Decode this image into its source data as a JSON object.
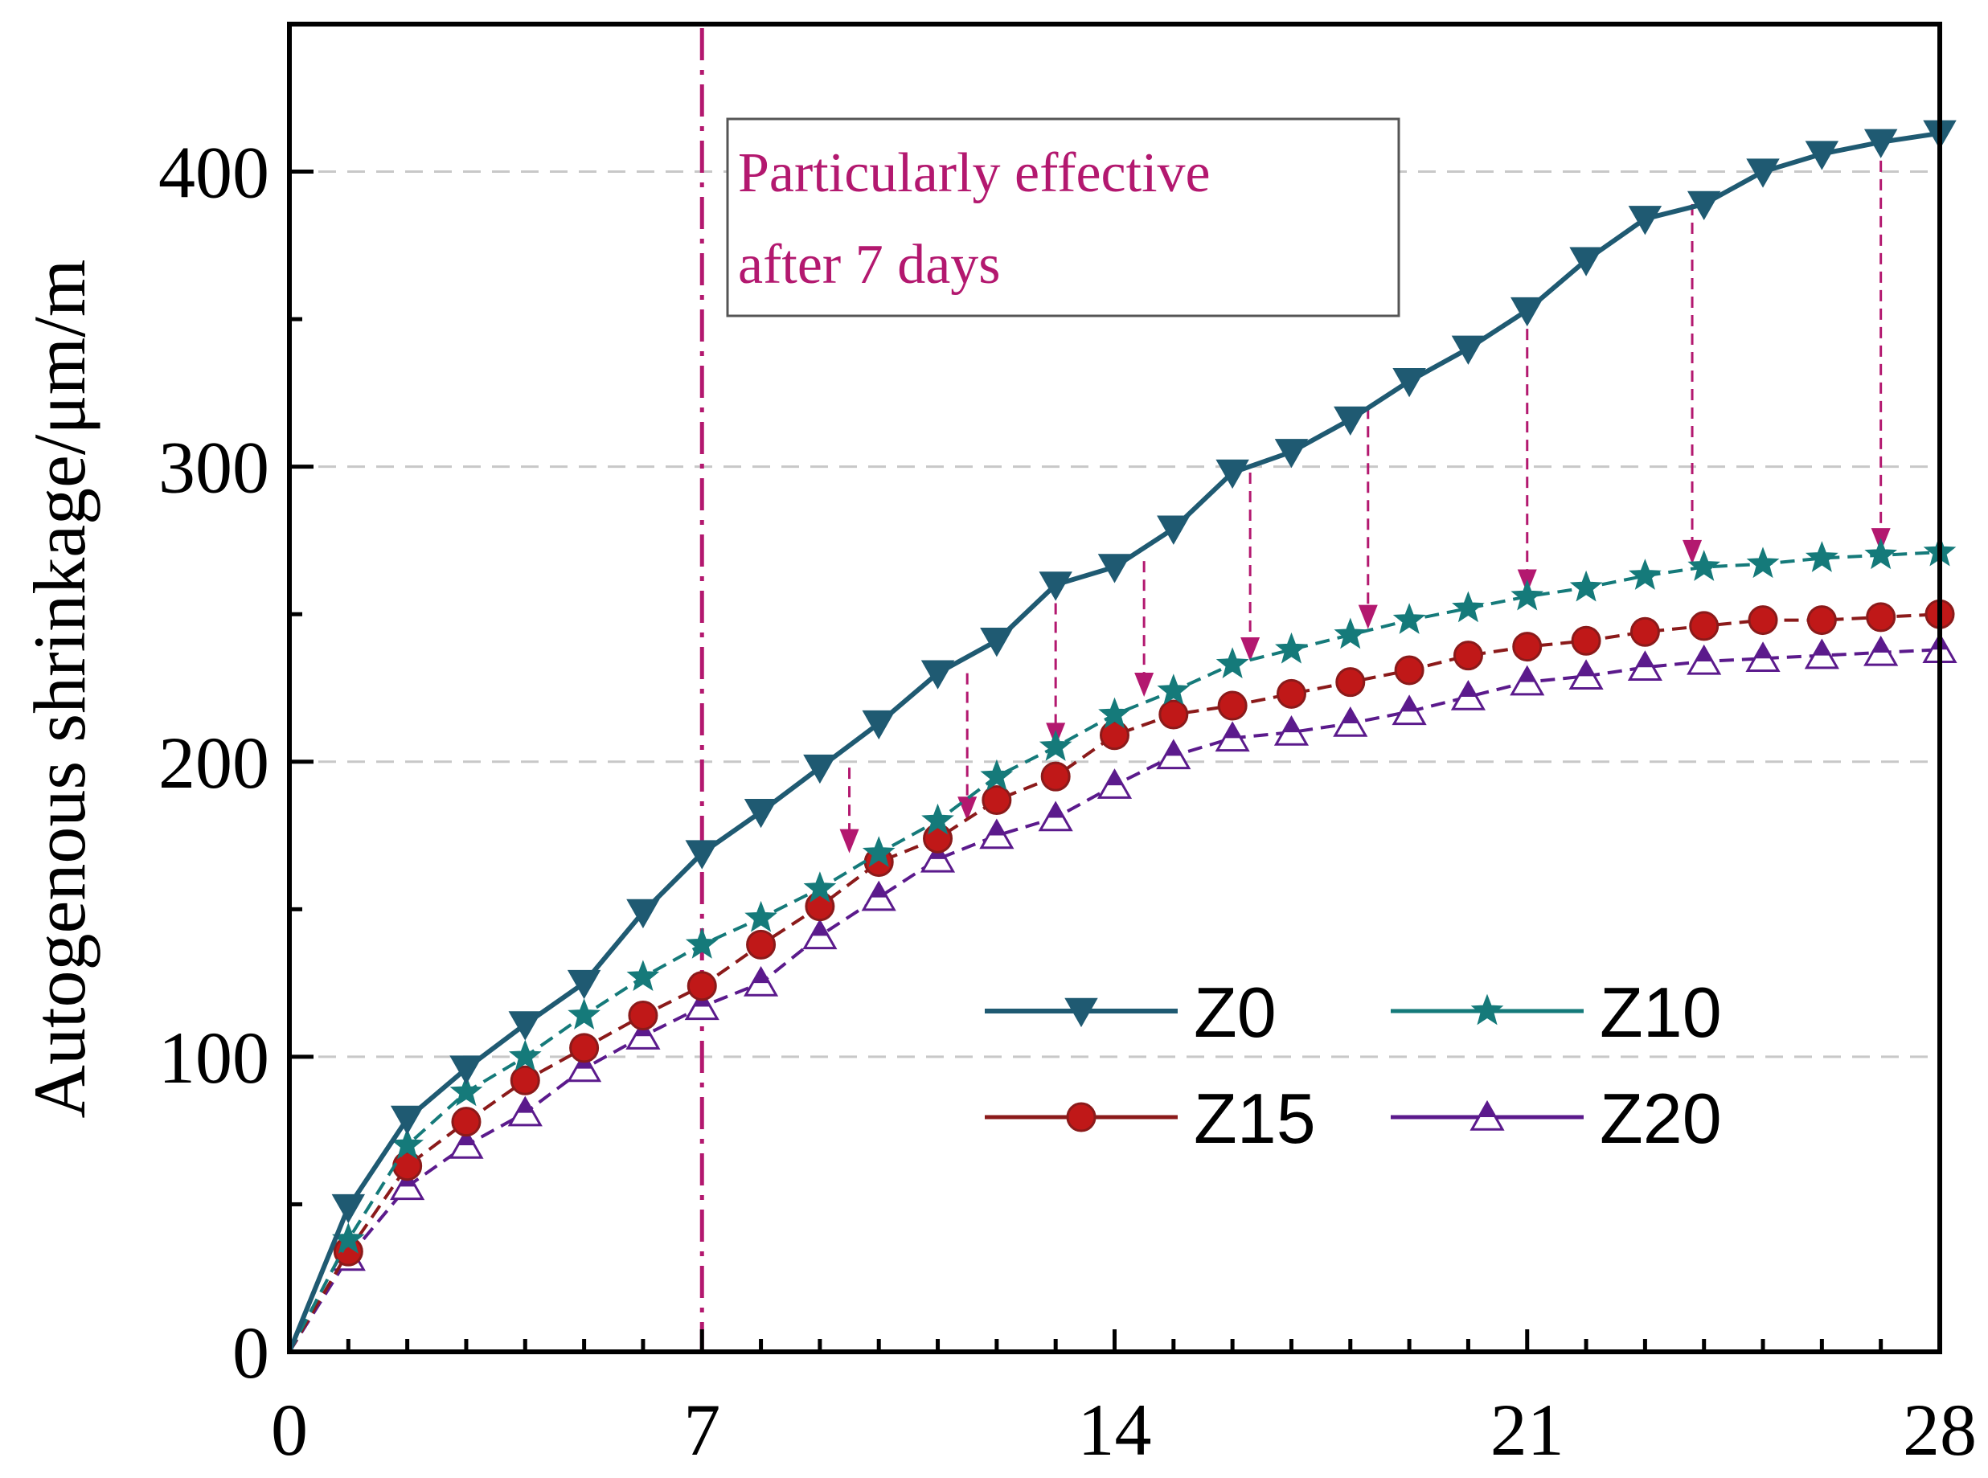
{
  "chart_data": {
    "type": "line",
    "title": "",
    "xlabel": "",
    "ylabel": "Autogenous shrinkage/μm/m",
    "xlim": [
      0,
      28
    ],
    "ylim": [
      0,
      450
    ],
    "x_ticks": [
      "0",
      "7",
      "14",
      "21",
      "28"
    ],
    "y_ticks": [
      "0",
      "100",
      "200",
      "300",
      "400"
    ],
    "grid": "horizontal dashed",
    "legend_position": "bottom-right",
    "x": [
      0,
      1,
      2,
      3,
      4,
      5,
      6,
      7,
      8,
      9,
      10,
      11,
      12,
      13,
      14,
      15,
      16,
      17,
      18,
      19,
      20,
      21,
      22,
      23,
      24,
      25,
      26,
      27,
      28
    ],
    "series": [
      {
        "name": "Z0",
        "color": "#1f5a72",
        "line": "solid",
        "marker": "triangle-down-filled",
        "values": [
          0,
          49,
          79,
          96,
          111,
          125,
          149,
          169,
          183,
          198,
          213,
          230,
          241,
          260,
          266,
          279,
          298,
          305,
          316,
          329,
          340,
          353,
          370,
          384,
          389,
          400,
          406,
          410,
          413
        ]
      },
      {
        "name": "Z10",
        "color": "#157a7a",
        "line": "dashed",
        "marker": "star",
        "values": [
          0,
          38,
          70,
          88,
          100,
          114,
          127,
          138,
          147,
          157,
          169,
          180,
          195,
          205,
          216,
          224,
          233,
          238,
          243,
          248,
          252,
          256,
          259,
          263,
          266,
          267,
          269,
          270,
          271
        ]
      },
      {
        "name": "Z15",
        "color": "#8b1a1a",
        "line": "dashed",
        "marker": "circle-filled",
        "values": [
          0,
          34,
          63,
          78,
          92,
          103,
          114,
          124,
          138,
          151,
          166,
          174,
          187,
          195,
          209,
          216,
          219,
          223,
          227,
          231,
          236,
          239,
          241,
          244,
          246,
          248,
          248,
          249,
          250
        ]
      },
      {
        "name": "Z20",
        "color": "#5b1a8c",
        "line": "dashed",
        "marker": "triangle-up-half",
        "values": [
          0,
          32,
          56,
          70,
          81,
          96,
          107,
          117,
          125,
          141,
          154,
          167,
          175,
          181,
          192,
          202,
          208,
          210,
          213,
          217,
          222,
          227,
          229,
          232,
          234,
          235,
          236,
          237,
          238
        ]
      }
    ],
    "annotations": {
      "text_line1": "Particularly effective",
      "text_line2": "after 7 days",
      "vertical_line_x": 7,
      "arrows": [
        {
          "x": 9.5,
          "from": 198,
          "to": 169
        },
        {
          "x": 11.5,
          "from": 230,
          "to": 180
        },
        {
          "x": 13,
          "from": 260,
          "to": 205
        },
        {
          "x": 14.5,
          "from": 268,
          "to": 222
        },
        {
          "x": 16.3,
          "from": 298,
          "to": 234
        },
        {
          "x": 18.3,
          "from": 320,
          "to": 245
        },
        {
          "x": 21,
          "from": 353,
          "to": 257
        },
        {
          "x": 23.8,
          "from": 389,
          "to": 267
        },
        {
          "x": 27,
          "from": 410,
          "to": 271
        }
      ]
    },
    "colors": {
      "annotation": "#b3186f",
      "grid": "#c8c8c8"
    }
  }
}
